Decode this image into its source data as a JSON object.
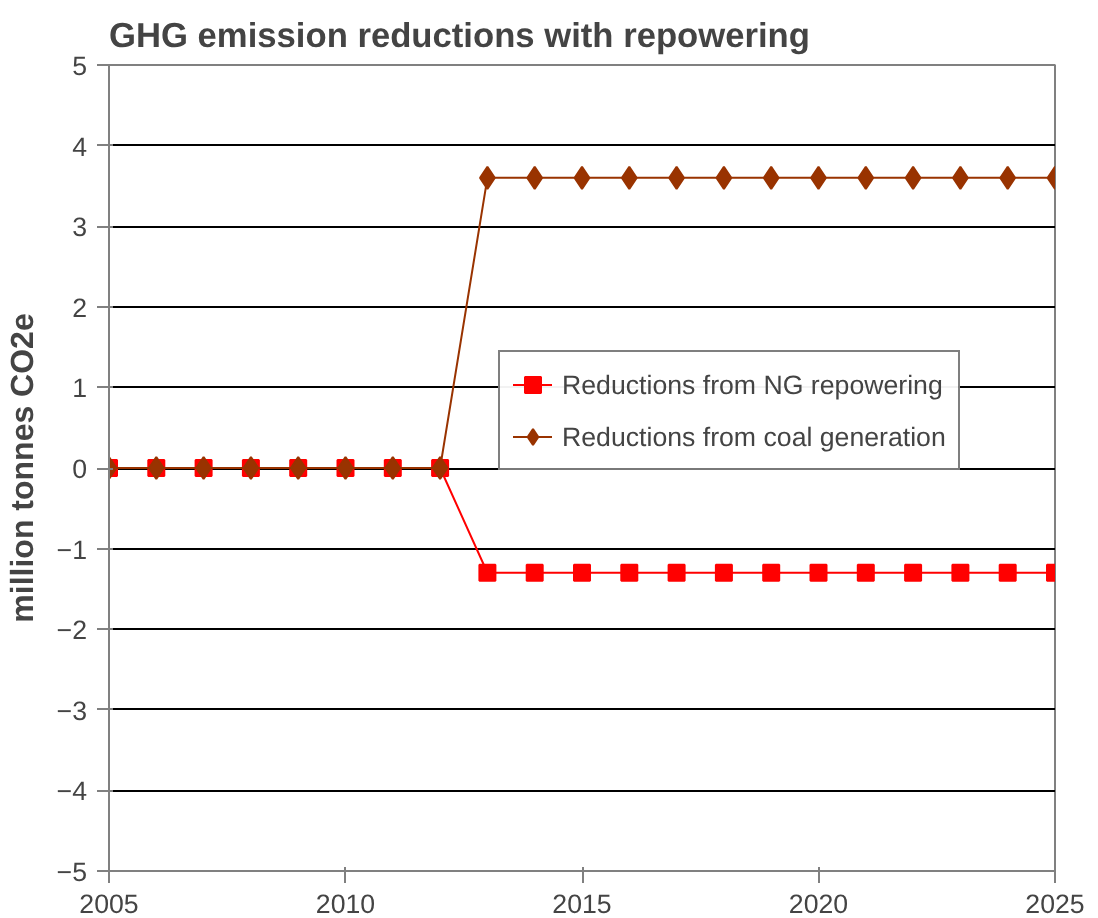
{
  "chart_data": {
    "type": "line",
    "title": "GHG emission reductions with repowering",
    "ylabel": "million tonnes CO2e",
    "x": [
      2005,
      2006,
      2007,
      2008,
      2009,
      2010,
      2011,
      2012,
      2013,
      2014,
      2015,
      2016,
      2017,
      2018,
      2019,
      2020,
      2021,
      2022,
      2023,
      2024,
      2025
    ],
    "series": [
      {
        "name": "Reductions from NG repowering",
        "color": "#ff0000",
        "marker": "square",
        "values": [
          0,
          0,
          0,
          0,
          0,
          0,
          0,
          0,
          -1.3,
          -1.3,
          -1.3,
          -1.3,
          -1.3,
          -1.3,
          -1.3,
          -1.3,
          -1.3,
          -1.3,
          -1.3,
          -1.3,
          -1.3
        ]
      },
      {
        "name": "Reductions from coal generation",
        "color": "#993300",
        "marker": "diamond",
        "values": [
          0,
          0,
          0,
          0,
          0,
          0,
          0,
          0,
          3.6,
          3.6,
          3.6,
          3.6,
          3.6,
          3.6,
          3.6,
          3.6,
          3.6,
          3.6,
          3.6,
          3.6,
          3.6
        ]
      }
    ],
    "xlim": [
      2005,
      2025
    ],
    "xticks": [
      2005,
      2010,
      2015,
      2020,
      2025
    ],
    "ylim": [
      -5,
      5
    ],
    "yticks": [
      -5,
      -4,
      -3,
      -2,
      -1,
      0,
      1,
      2,
      3,
      4,
      5
    ],
    "grid": "y",
    "legend": "right",
    "line_style": "solid"
  }
}
